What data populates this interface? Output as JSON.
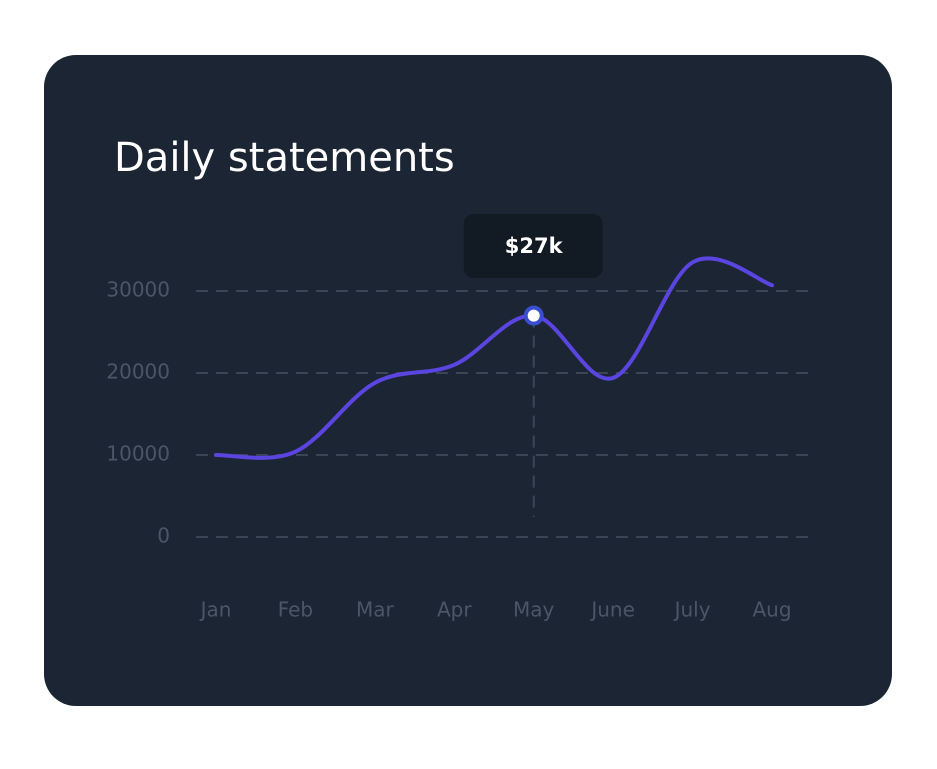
{
  "chart_data": {
    "type": "line",
    "title": "Daily statements",
    "categories": [
      "Jan",
      "Feb",
      "Mar",
      "Apr",
      "May",
      "June",
      "July",
      "Aug"
    ],
    "series": [
      {
        "color": "#5b45e0",
        "values": [
          10000,
          10400,
          18800,
          21000,
          27000,
          19400,
          33500,
          30700
        ]
      }
    ],
    "ylim": [
      0,
      30000
    ],
    "yticks": [
      0,
      10000,
      20000,
      30000
    ],
    "grid": true,
    "tooltip": {
      "category_index": 4,
      "label": "$27k"
    }
  }
}
